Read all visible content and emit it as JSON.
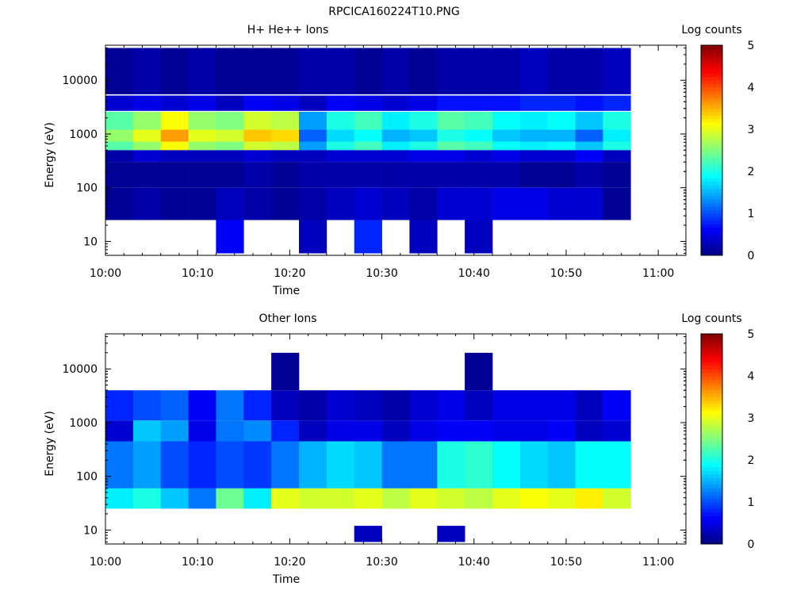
{
  "figure": {
    "title": "RPCICA160224T10.PNG"
  },
  "chart_data": [
    {
      "type": "heatmap",
      "title": "H+ He++ Ions",
      "xlabel": "Time",
      "ylabel": "Energy (eV)",
      "xlim": [
        "10:00",
        "11:03"
      ],
      "ylim": [
        5.5,
        45000
      ],
      "y_scale": "log",
      "x_ticks": [
        "10:00",
        "10:10",
        "10:20",
        "10:30",
        "10:40",
        "10:50",
        "11:00"
      ],
      "y_ticks": [
        "10",
        "100",
        "1000",
        "10000"
      ],
      "colorbar": {
        "label": "Log counts",
        "range": [
          0,
          5
        ],
        "ticks": [
          "0",
          "1",
          "2",
          "3",
          "4",
          "5"
        ]
      },
      "time_bins": [
        "10:00",
        "10:03",
        "10:06",
        "10:09",
        "10:12",
        "10:15",
        "10:18",
        "10:21",
        "10:24",
        "10:27",
        "10:30",
        "10:33",
        "10:36",
        "10:39",
        "10:42",
        "10:45",
        "10:48",
        "10:51",
        "10:54"
      ],
      "bands": [
        {
          "e_min": 500,
          "e_max": 2600,
          "values": [
            2.3,
            2.6,
            3.1,
            2.6,
            2.5,
            2.9,
            2.8,
            1.4,
            2.0,
            2.2,
            1.8,
            2.0,
            2.3,
            2.2,
            1.9,
            1.8,
            1.9,
            1.6,
            2.0
          ]
        },
        {
          "e_min": 720,
          "e_max": 1200,
          "values": [
            2.6,
            3.0,
            3.6,
            3.0,
            2.9,
            3.4,
            3.3,
            1.1,
            1.7,
            1.9,
            1.5,
            1.6,
            2.0,
            1.9,
            1.6,
            1.5,
            1.5,
            1.1,
            1.8
          ]
        },
        {
          "e_min": 2700,
          "e_max": 5200,
          "values": [
            0.4,
            0.5,
            0.4,
            0.5,
            0.3,
            0.6,
            0.5,
            0.3,
            0.6,
            0.5,
            0.4,
            0.5,
            0.7,
            0.7,
            0.7,
            0.8,
            0.8,
            0.7,
            0.8
          ]
        },
        {
          "e_min": 300,
          "e_max": 500,
          "values": [
            0.2,
            0.4,
            0.3,
            0.3,
            0.3,
            0.4,
            0.3,
            0.3,
            0.4,
            0.4,
            0.4,
            0.5,
            0.5,
            0.4,
            0.5,
            0.4,
            0.4,
            0.6,
            0.3
          ]
        },
        {
          "e_min": 5500,
          "e_max": 40000,
          "values": [
            0.1,
            0.2,
            0.1,
            0.2,
            0.1,
            0.1,
            0.1,
            0.2,
            0.2,
            0.1,
            0.2,
            0.1,
            0.2,
            0.2,
            0.2,
            0.3,
            0.2,
            0.2,
            0.3
          ]
        },
        {
          "e_min": 100,
          "e_max": 300,
          "values": [
            0.1,
            0.1,
            0.1,
            0.1,
            0.1,
            0.2,
            0.1,
            0.2,
            0.2,
            0.2,
            0.2,
            0.2,
            0.2,
            0.2,
            0.2,
            0.1,
            0.1,
            0.2,
            0.1
          ]
        },
        {
          "e_min": 25,
          "e_max": 100,
          "values": [
            0.1,
            0.2,
            0.1,
            0.1,
            0.3,
            0.2,
            0.1,
            0.2,
            0.3,
            0.4,
            0.3,
            0.2,
            0.4,
            0.4,
            0.5,
            0.5,
            0.4,
            0.4,
            0.1
          ]
        },
        {
          "e_min": 6,
          "e_max": 25,
          "values": [
            0,
            0,
            0,
            0,
            0.6,
            0,
            0,
            0.3,
            0,
            0.8,
            0,
            0.3,
            0,
            0.3,
            0,
            0,
            0,
            0,
            0
          ]
        }
      ]
    },
    {
      "type": "heatmap",
      "title": "Other Ions",
      "xlabel": "Time",
      "ylabel": "Energy (eV)",
      "xlim": [
        "10:00",
        "11:03"
      ],
      "ylim": [
        5.5,
        45000
      ],
      "y_scale": "log",
      "x_ticks": [
        "10:00",
        "10:10",
        "10:20",
        "10:30",
        "10:40",
        "10:50",
        "11:00"
      ],
      "y_ticks": [
        "10",
        "100",
        "1000",
        "10000"
      ],
      "colorbar": {
        "label": "Log counts",
        "range": [
          0,
          5
        ],
        "ticks": [
          "0",
          "1",
          "2",
          "3",
          "4",
          "5"
        ]
      },
      "time_bins": [
        "10:00",
        "10:03",
        "10:06",
        "10:09",
        "10:12",
        "10:15",
        "10:18",
        "10:21",
        "10:24",
        "10:27",
        "10:30",
        "10:33",
        "10:36",
        "10:39",
        "10:42",
        "10:45",
        "10:48",
        "10:51",
        "10:54"
      ],
      "bands": [
        {
          "e_min": 25,
          "e_max": 60,
          "values": [
            1.8,
            2.0,
            1.6,
            1.2,
            2.4,
            1.8,
            3.0,
            2.9,
            2.9,
            3.0,
            2.8,
            3.0,
            2.9,
            2.8,
            3.0,
            3.1,
            3.0,
            3.2,
            2.9
          ]
        },
        {
          "e_min": 60,
          "e_max": 450,
          "values": [
            1.2,
            1.4,
            1.0,
            0.8,
            1.0,
            0.9,
            1.2,
            1.5,
            1.7,
            1.6,
            1.2,
            1.2,
            2.0,
            2.1,
            1.9,
            1.7,
            1.6,
            1.9,
            1.9
          ]
        },
        {
          "e_min": 450,
          "e_max": 1100,
          "values": [
            0.4,
            1.6,
            1.4,
            0.5,
            1.2,
            1.3,
            0.8,
            0.3,
            0.5,
            0.5,
            0.3,
            0.5,
            0.6,
            0.6,
            0.5,
            0.5,
            0.6,
            0.3,
            0.4
          ]
        },
        {
          "e_min": 1100,
          "e_max": 4000,
          "values": [
            0.8,
            1.0,
            1.1,
            0.6,
            1.2,
            0.8,
            0.3,
            0.2,
            0.4,
            0.3,
            0.2,
            0.4,
            0.5,
            0.3,
            0.5,
            0.5,
            0.5,
            0.3,
            0.6
          ]
        },
        {
          "e_min": 4000,
          "e_max": 20000,
          "values": [
            0,
            0,
            0,
            0,
            0,
            0,
            0.1,
            0,
            0,
            0,
            0,
            0,
            0,
            0.1,
            0,
            0,
            0,
            0,
            0
          ]
        },
        {
          "e_min": 6,
          "e_max": 12,
          "values": [
            0,
            0,
            0,
            0,
            0,
            0,
            0,
            0,
            0,
            0.3,
            0,
            0,
            0.3,
            0,
            0,
            0,
            0,
            0,
            0
          ]
        }
      ]
    }
  ]
}
